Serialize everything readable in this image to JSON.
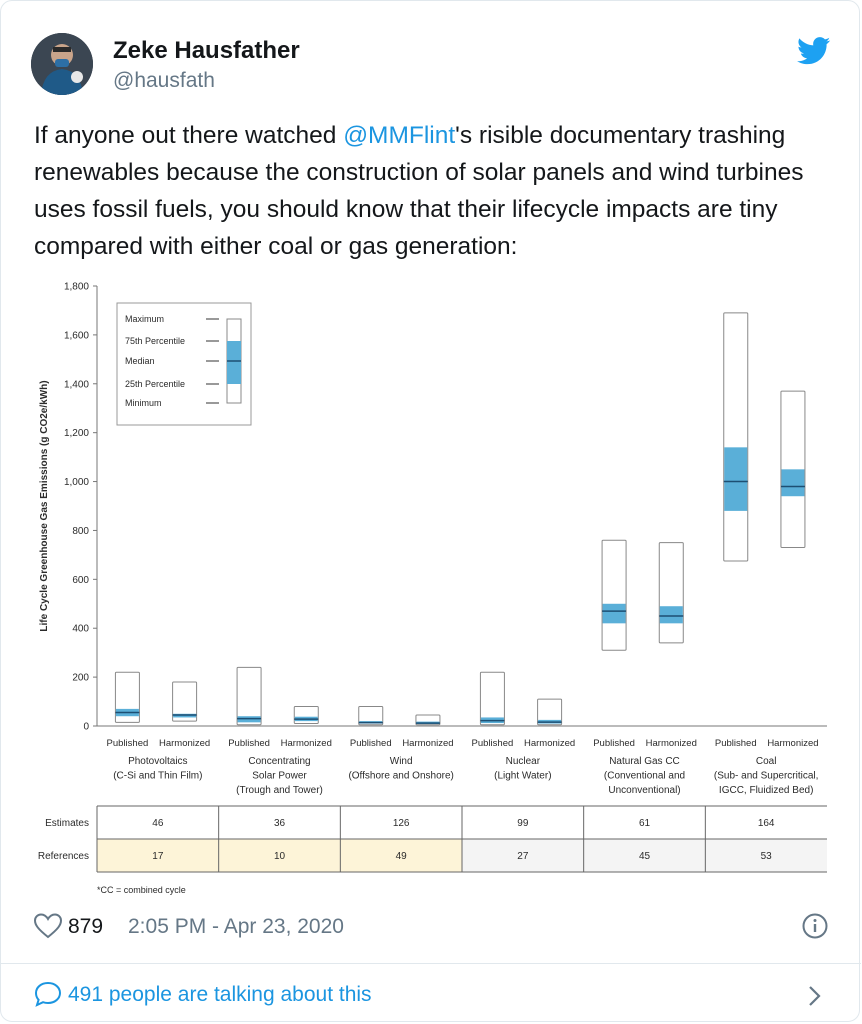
{
  "tweet": {
    "author_name": "Zeke Hausfather",
    "author_handle": "@hausfath",
    "text_before": "If anyone out there watched ",
    "mention": "@MMFlint",
    "text_after": "'s risible documentary trashing renewables because the construction of solar panels and wind turbines uses fossil fuels, you should know that their lifecycle impacts are tiny compared with either coal or gas generation:",
    "likes": "879",
    "timestamp": "2:05 PM - Apr 23, 2020",
    "conversation": "491 people are talking about this",
    "icons": [
      "twitter-bird-icon",
      "heart-icon",
      "info-icon",
      "speech-bubble-icon",
      "chevron-right-icon"
    ],
    "accent_color": "#1b95e0"
  },
  "chart_data": {
    "type": "box",
    "ylabel": "Life Cycle Greenhouse Gas Emissions (g CO2e/kWh)",
    "ylim": [
      0,
      1800
    ],
    "yticks": [
      0,
      200,
      400,
      600,
      800,
      1000,
      1200,
      1400,
      1600,
      1800
    ],
    "ytick_labels": [
      "0",
      "200",
      "400",
      "600",
      "800",
      "1,000",
      "1,200",
      "1,400",
      "1,600",
      "1,800"
    ],
    "legend": {
      "entries": [
        "Maximum",
        "75th Percentile",
        "Median",
        "25th Percentile",
        "Minimum"
      ],
      "placement": "top-left"
    },
    "box_color": "#5aafd8",
    "groups": [
      {
        "name": "Photovoltaics (C-Si and Thin Film)",
        "lines": [
          "Photovoltaics",
          "(C-Si and Thin Film)"
        ],
        "estimates": "46",
        "references": "17",
        "highlight": true,
        "boxes": [
          {
            "label": "Published",
            "min": 15,
            "q1": 40,
            "median": 55,
            "q3": 70,
            "max": 220
          },
          {
            "label": "Harmonized",
            "min": 20,
            "q1": 35,
            "median": 45,
            "q3": 50,
            "max": 180
          }
        ]
      },
      {
        "name": "Concentrating Solar Power (Trough and Tower)",
        "lines": [
          "Concentrating",
          "Solar Power",
          "(Trough and Tower)"
        ],
        "estimates": "36",
        "references": "10",
        "highlight": true,
        "boxes": [
          {
            "label": "Published",
            "min": 5,
            "q1": 15,
            "median": 30,
            "q3": 40,
            "max": 240
          },
          {
            "label": "Harmonized",
            "min": 10,
            "q1": 20,
            "median": 28,
            "q3": 38,
            "max": 80
          }
        ]
      },
      {
        "name": "Wind (Offshore and Onshore)",
        "lines": [
          "Wind",
          "(Offshore and Onshore)"
        ],
        "estimates": "126",
        "references": "49",
        "highlight": true,
        "boxes": [
          {
            "label": "Published",
            "min": 5,
            "q1": 10,
            "median": 14,
            "q3": 20,
            "max": 80
          },
          {
            "label": "Harmonized",
            "min": 5,
            "q1": 8,
            "median": 12,
            "q3": 18,
            "max": 45
          }
        ]
      },
      {
        "name": "Nuclear (Light Water)",
        "lines": [
          "Nuclear",
          "(Light Water)"
        ],
        "estimates": "99",
        "references": "27",
        "highlight": false,
        "boxes": [
          {
            "label": "Published",
            "min": 5,
            "q1": 12,
            "median": 22,
            "q3": 35,
            "max": 220
          },
          {
            "label": "Harmonized",
            "min": 5,
            "q1": 10,
            "median": 16,
            "q3": 25,
            "max": 110
          }
        ]
      },
      {
        "name": "Natural Gas CC (Conventional and Unconventional)",
        "lines": [
          "Natural Gas CC",
          "(Conventional and",
          "Unconventional)"
        ],
        "estimates": "61",
        "references": "45",
        "highlight": false,
        "boxes": [
          {
            "label": "Published",
            "min": 310,
            "q1": 420,
            "median": 470,
            "q3": 500,
            "max": 760
          },
          {
            "label": "Harmonized",
            "min": 340,
            "q1": 420,
            "median": 450,
            "q3": 490,
            "max": 750
          }
        ]
      },
      {
        "name": "Coal (Sub- and Supercritical, IGCC, Fluidized Bed)",
        "lines": [
          "Coal",
          "(Sub- and Supercritical,",
          "IGCC, Fluidized Bed)"
        ],
        "estimates": "164",
        "references": "53",
        "highlight": false,
        "boxes": [
          {
            "label": "Published",
            "min": 675,
            "q1": 880,
            "median": 1000,
            "q3": 1140,
            "max": 1690
          },
          {
            "label": "Harmonized",
            "min": 730,
            "q1": 940,
            "median": 980,
            "q3": 1050,
            "max": 1370
          }
        ]
      }
    ],
    "table_rows": [
      "Estimates",
      "References"
    ],
    "footnote": "*CC = combined cycle"
  }
}
